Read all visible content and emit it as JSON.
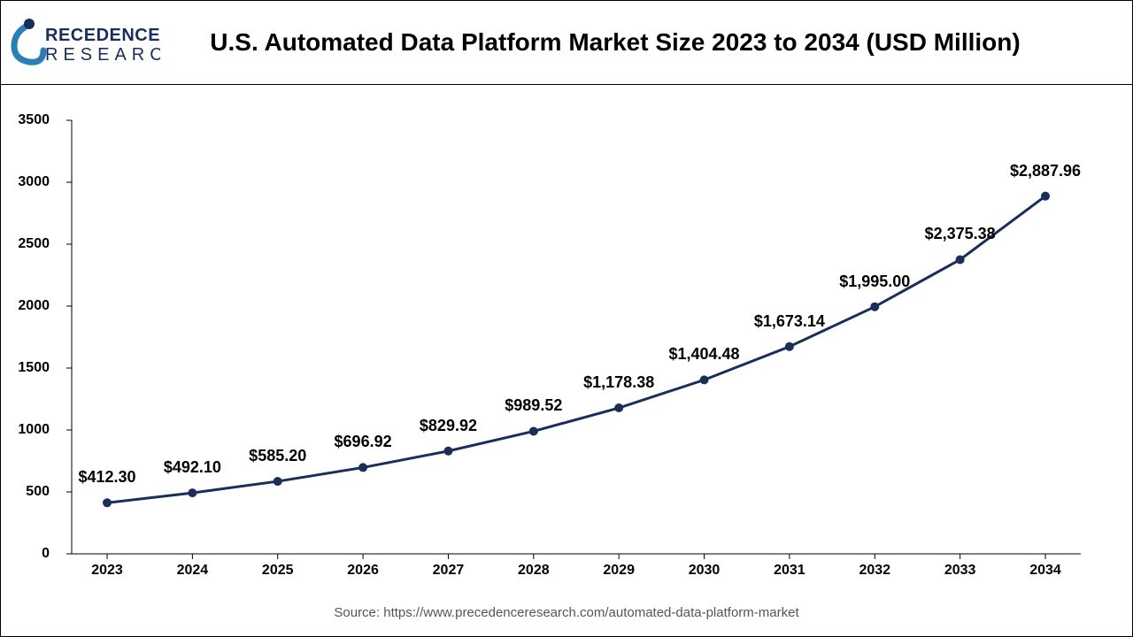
{
  "header": {
    "logo_text_top": "PRECEDENCE",
    "logo_text_bottom": "RESEARCH",
    "logo_color_main": "#1a2e5c",
    "logo_color_accent": "#2a7fb8",
    "title": "U.S. Automated Data Platform Market Size 2023 to 2034 (USD Million)"
  },
  "chart": {
    "type": "line",
    "categories": [
      "2023",
      "2024",
      "2025",
      "2026",
      "2027",
      "2028",
      "2029",
      "2030",
      "2031",
      "2032",
      "2033",
      "2034"
    ],
    "values": [
      412.3,
      492.1,
      585.2,
      696.92,
      829.92,
      989.52,
      1178.38,
      1404.48,
      1673.14,
      1995.0,
      2375.38,
      2887.96
    ],
    "data_labels": [
      "$412.30",
      "$492.10",
      "$585.20",
      "$696.92",
      "$829.92",
      "$989.52",
      "$1,178.38",
      "$1,404.48",
      "$1,673.14",
      "$1,995.00",
      "$2,375.38",
      "$2,887.96"
    ],
    "ylim": [
      0,
      3500
    ],
    "ytick_step": 500,
    "yticks": [
      "0",
      "500",
      "1000",
      "1500",
      "2000",
      "2500",
      "3000",
      "3500"
    ],
    "line_color": "#1a2e5c",
    "line_width": 3,
    "marker_color": "#1a2e5c",
    "marker_radius": 5,
    "axis_color": "#000000",
    "axis_width": 1,
    "background_color": "#ffffff",
    "label_fontsize": 18,
    "tick_fontsize": 16,
    "title_fontsize": 28,
    "label_offset_y": 18
  },
  "source": "Source: https://www.precedenceresearch.com/automated-data-platform-market"
}
